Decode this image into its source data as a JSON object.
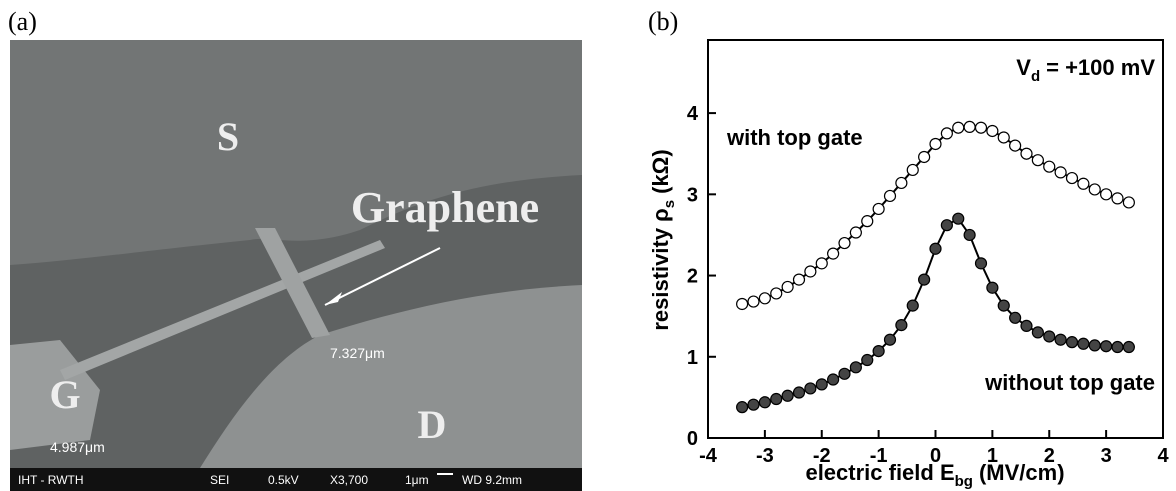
{
  "panel_a": {
    "label": "(a)",
    "region_labels": [
      "S",
      "G",
      "D"
    ],
    "graphene_label": "Graphene",
    "measurements": [
      "7.327μm",
      "4.987μm"
    ],
    "info_bar": [
      "IHT - RWTH",
      "SEI",
      "0.5kV",
      "X3,700",
      "1μm",
      "WD 9.2mm"
    ]
  },
  "chart_data": {
    "type": "scatter",
    "panel_label": "(b)",
    "x_label": {
      "text": "electric field E",
      "sub": "bg",
      "tail": "(MV/cm)"
    },
    "y_label": {
      "text": "resistivity ρ",
      "sub": "s",
      "tail": "(kΩ)"
    },
    "annotation": {
      "text": "V",
      "sub": "d",
      "tail": "= +100 mV"
    },
    "x": [
      -3.4,
      -3.2,
      -3.0,
      -2.8,
      -2.6,
      -2.4,
      -2.2,
      -2.0,
      -1.8,
      -1.6,
      -1.4,
      -1.2,
      -1.0,
      -0.8,
      -0.6,
      -0.4,
      -0.2,
      0,
      0.2,
      0.4,
      0.6,
      0.8,
      1.0,
      1.2,
      1.4,
      1.6,
      1.8,
      2.0,
      2.2,
      2.4,
      2.6,
      2.8,
      3.0,
      3.2,
      3.4
    ],
    "series": [
      {
        "name": "with top gate",
        "color": "#000000",
        "marker": "open",
        "values": [
          1.65,
          1.68,
          1.72,
          1.78,
          1.86,
          1.95,
          2.05,
          2.15,
          2.27,
          2.4,
          2.53,
          2.67,
          2.82,
          2.98,
          3.14,
          3.3,
          3.46,
          3.62,
          3.75,
          3.82,
          3.83,
          3.82,
          3.78,
          3.7,
          3.6,
          3.5,
          3.42,
          3.34,
          3.27,
          3.2,
          3.13,
          3.06,
          3.0,
          2.95,
          2.9
        ]
      },
      {
        "name": "without top gate",
        "color": "#000000",
        "marker": "filled",
        "values": [
          0.38,
          0.41,
          0.44,
          0.48,
          0.52,
          0.56,
          0.61,
          0.66,
          0.72,
          0.79,
          0.87,
          0.96,
          1.07,
          1.21,
          1.39,
          1.63,
          1.95,
          2.33,
          2.62,
          2.7,
          2.5,
          2.15,
          1.85,
          1.63,
          1.48,
          1.38,
          1.3,
          1.25,
          1.21,
          1.18,
          1.16,
          1.14,
          1.13,
          1.12,
          1.12
        ]
      }
    ],
    "xlim": [
      -4,
      4
    ],
    "ylim": [
      0,
      4.9
    ],
    "xticks": [
      -4,
      -3,
      -2,
      -1,
      0,
      1,
      2,
      3,
      4
    ],
    "yticks": [
      0,
      1,
      2,
      3,
      4
    ]
  }
}
